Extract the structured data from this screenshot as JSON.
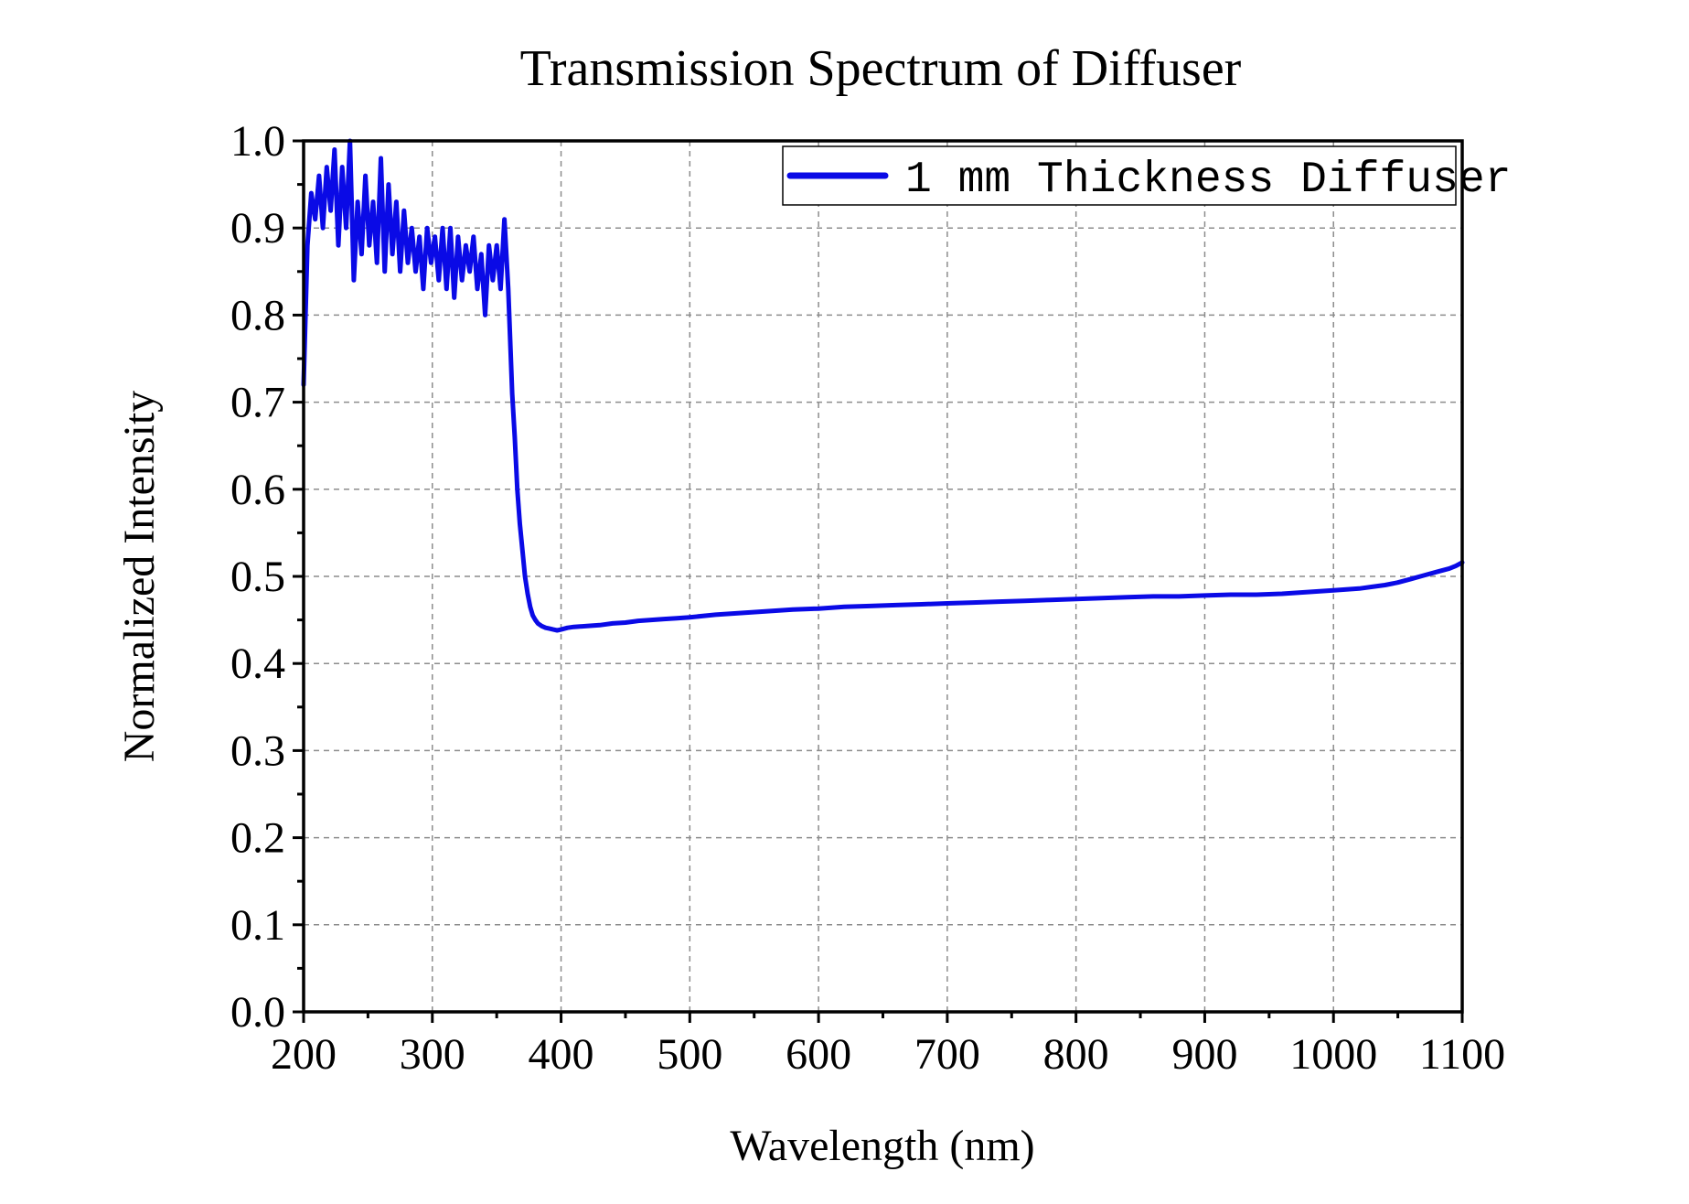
{
  "chart_data": {
    "type": "line",
    "title": "Transmission Spectrum of Diffuser",
    "xlabel": "Wavelength (nm)",
    "ylabel": "Normalized Intensity",
    "xlim": [
      200,
      1100
    ],
    "ylim": [
      0.0,
      1.0
    ],
    "x_ticks": [
      200,
      300,
      400,
      500,
      600,
      700,
      800,
      900,
      1000,
      1100
    ],
    "x_tick_labels": [
      "200",
      "300",
      "400",
      "500",
      "600",
      "700",
      "800",
      "900",
      "1000",
      "1100"
    ],
    "y_ticks": [
      0.0,
      0.1,
      0.2,
      0.3,
      0.4,
      0.5,
      0.6,
      0.7,
      0.8,
      0.9,
      1.0
    ],
    "y_tick_labels": [
      "0.0",
      "0.1",
      "0.2",
      "0.3",
      "0.4",
      "0.5",
      "0.6",
      "0.7",
      "0.8",
      "0.9",
      "1.0"
    ],
    "grid": true,
    "legend_position": "top-right",
    "series": [
      {
        "name": "1 mm Thickness Diffuser",
        "color": "#0a0ae6",
        "x": [
          200,
          203,
          206,
          209,
          212,
          215,
          218,
          221,
          224,
          227,
          230,
          233,
          236,
          239,
          242,
          245,
          248,
          251,
          254,
          257,
          260,
          263,
          266,
          269,
          272,
          275,
          278,
          281,
          284,
          287,
          290,
          293,
          296,
          299,
          302,
          305,
          308,
          311,
          314,
          317,
          320,
          323,
          326,
          329,
          332,
          335,
          338,
          341,
          344,
          347,
          350,
          353,
          356,
          359,
          362,
          364,
          366,
          368,
          370,
          372,
          374,
          376,
          378,
          380,
          382,
          385,
          388,
          391,
          394,
          397,
          400,
          405,
          410,
          420,
          430,
          440,
          450,
          460,
          470,
          480,
          490,
          500,
          520,
          540,
          560,
          580,
          600,
          620,
          640,
          660,
          680,
          700,
          720,
          740,
          760,
          780,
          800,
          820,
          840,
          860,
          880,
          900,
          920,
          940,
          960,
          980,
          1000,
          1020,
          1030,
          1040,
          1050,
          1060,
          1070,
          1080,
          1090,
          1095,
          1100
        ],
        "values": [
          0.72,
          0.88,
          0.94,
          0.91,
          0.96,
          0.9,
          0.97,
          0.92,
          0.99,
          0.88,
          0.97,
          0.9,
          1.0,
          0.84,
          0.93,
          0.87,
          0.96,
          0.88,
          0.93,
          0.86,
          0.98,
          0.85,
          0.95,
          0.87,
          0.93,
          0.85,
          0.92,
          0.86,
          0.9,
          0.85,
          0.89,
          0.83,
          0.9,
          0.86,
          0.89,
          0.84,
          0.9,
          0.83,
          0.9,
          0.82,
          0.89,
          0.84,
          0.88,
          0.85,
          0.89,
          0.83,
          0.87,
          0.8,
          0.88,
          0.84,
          0.88,
          0.83,
          0.91,
          0.83,
          0.71,
          0.66,
          0.6,
          0.56,
          0.53,
          0.5,
          0.48,
          0.465,
          0.455,
          0.45,
          0.446,
          0.443,
          0.441,
          0.44,
          0.439,
          0.438,
          0.439,
          0.441,
          0.442,
          0.443,
          0.444,
          0.446,
          0.447,
          0.449,
          0.45,
          0.451,
          0.452,
          0.453,
          0.456,
          0.458,
          0.46,
          0.462,
          0.463,
          0.465,
          0.466,
          0.467,
          0.468,
          0.469,
          0.47,
          0.471,
          0.472,
          0.473,
          0.474,
          0.475,
          0.476,
          0.477,
          0.477,
          0.478,
          0.479,
          0.479,
          0.48,
          0.482,
          0.484,
          0.486,
          0.488,
          0.49,
          0.493,
          0.497,
          0.501,
          0.505,
          0.509,
          0.512,
          0.516
        ]
      }
    ]
  }
}
